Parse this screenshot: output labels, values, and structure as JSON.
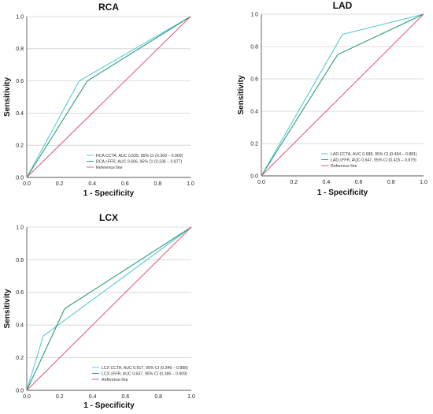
{
  "chart_data": [
    {
      "type": "line",
      "title": "RCA",
      "xlabel": "1 - Specificity",
      "ylabel": "Sensitivity",
      "xlim": [
        0,
        1
      ],
      "ylim": [
        0,
        1
      ],
      "ticks": [
        "0.0",
        "0.2",
        "0.4",
        "0.6",
        "0.8",
        "1.0"
      ],
      "grid": true,
      "legend_position": "bottom-right",
      "series": [
        {
          "name": "RCA CCTA, AUC 0.639, 95% CI (0.369 – 0.909)",
          "color": "#5bc8dc",
          "x": [
            0,
            0.32,
            1
          ],
          "y": [
            0,
            0.6,
            1
          ]
        },
        {
          "name": "RCA cFFR, AUC 0.606, 95% CI (0.336 – 0.877)",
          "color": "#2e9a7a",
          "x": [
            0,
            0.37,
            1
          ],
          "y": [
            0,
            0.6,
            1
          ]
        },
        {
          "name": "Reference line",
          "color": "#e0607a",
          "x": [
            0,
            1
          ],
          "y": [
            0,
            1
          ]
        }
      ]
    },
    {
      "type": "line",
      "title": "LAD",
      "xlabel": "1 - Specificity",
      "ylabel": "Sensitivity",
      "xlim": [
        0,
        1
      ],
      "ylim": [
        0,
        1
      ],
      "ticks": [
        "0.0",
        "0.2",
        "0.4",
        "0.6",
        "0.8",
        "1.0"
      ],
      "grid": true,
      "legend_position": "bottom-right",
      "series": [
        {
          "name": "LAD CCTA, AUC 0.688, 95% CI (0.494 – 0.881)",
          "color": "#5bc8dc",
          "x": [
            0,
            0.5,
            1
          ],
          "y": [
            0,
            0.875,
            1
          ]
        },
        {
          "name": "LAD cFFR, AUC 0.647, 95% CI (0.415 – 0.879)",
          "color": "#2e9a7a",
          "x": [
            0,
            0.47,
            1
          ],
          "y": [
            0,
            0.75,
            1
          ]
        },
        {
          "name": "Reference line",
          "color": "#e0607a",
          "x": [
            0,
            1
          ],
          "y": [
            0,
            1
          ]
        }
      ]
    },
    {
      "type": "line",
      "title": "LCX",
      "xlabel": "1 - Specificity",
      "ylabel": "Sensitivity",
      "xlim": [
        0,
        1
      ],
      "ylim": [
        0,
        1
      ],
      "ticks": [
        "0.0",
        "0.2",
        "0.4",
        "0.6",
        "0.8",
        "1.0"
      ],
      "grid": true,
      "legend_position": "bottom-right",
      "series": [
        {
          "name": "LCX CCTA, AUC 0.617, 95% CI (0.346 – 0.888)",
          "color": "#5bc8dc",
          "x": [
            0,
            0.1,
            1
          ],
          "y": [
            0,
            0.333,
            1
          ]
        },
        {
          "name": "LCX cFFR, AUC 0.647, 95% CI (0.385 – 0.909)",
          "color": "#2e9a7a",
          "x": [
            0,
            0.23,
            1
          ],
          "y": [
            0,
            0.5,
            1
          ]
        },
        {
          "name": "Reference line",
          "color": "#e0607a",
          "x": [
            0,
            1
          ],
          "y": [
            0,
            1
          ]
        }
      ]
    }
  ]
}
